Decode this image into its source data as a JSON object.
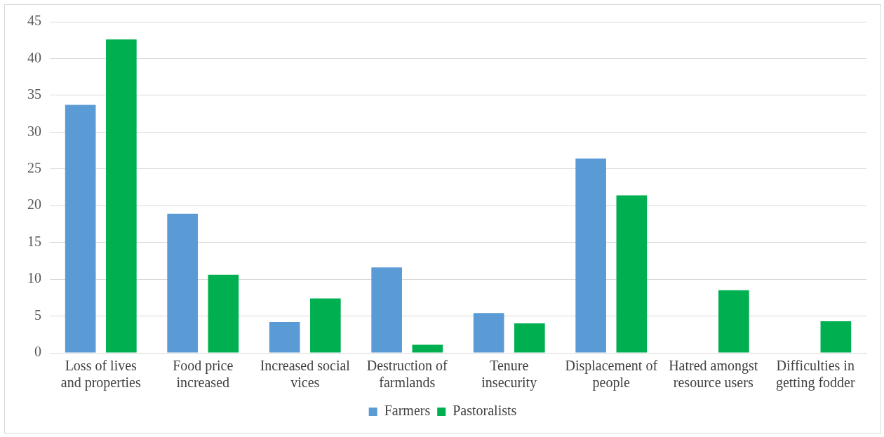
{
  "chart_data": {
    "type": "bar",
    "categories": [
      "Loss of lives and properties",
      "Food price increased",
      "Increased social vices",
      "Destruction of farmlands",
      "Tenure insecurity",
      "Displacement of people",
      "Hatred amongst resource users",
      "Difficulties in getting fodder"
    ],
    "series": [
      {
        "name": "Farmers",
        "color": "#5b9bd5",
        "values": [
          33.7,
          18.9,
          4.2,
          11.6,
          5.4,
          26.4,
          0,
          0
        ]
      },
      {
        "name": "Pastoralists",
        "color": "#00b050",
        "values": [
          42.6,
          10.6,
          7.4,
          1.1,
          4.0,
          21.4,
          8.5,
          4.3
        ]
      }
    ],
    "ylim": [
      0,
      45
    ],
    "yticks": [
      0,
      5,
      10,
      15,
      20,
      25,
      30,
      35,
      40,
      45
    ],
    "grid": "y",
    "legend": "bottom"
  }
}
